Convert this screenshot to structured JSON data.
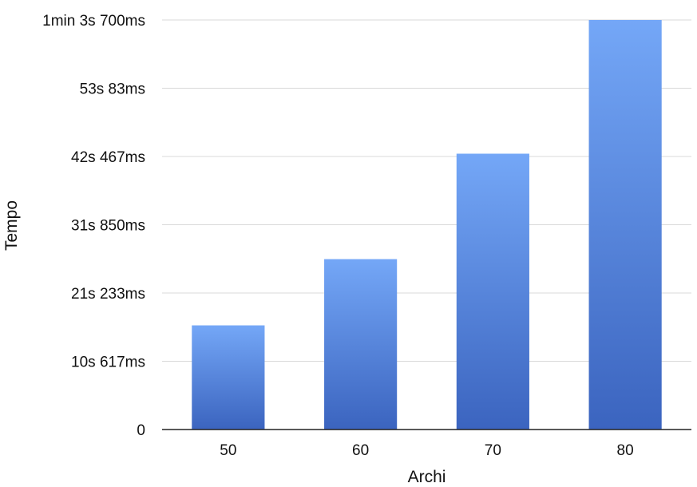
{
  "chart_data": {
    "type": "bar",
    "xlabel": "Archi",
    "ylabel": "Tempo",
    "categories": [
      "50",
      "60",
      "70",
      "80"
    ],
    "values": [
      16.2,
      26.5,
      42.9,
      63.7
    ],
    "value_unit": "s",
    "ylim": [
      0,
      63.7
    ],
    "y_ticks": [
      {
        "value": 0,
        "label": "0"
      },
      {
        "value": 10.617,
        "label": "10s 617ms"
      },
      {
        "value": 21.233,
        "label": "21s 233ms"
      },
      {
        "value": 31.85,
        "label": "31s 850ms"
      },
      {
        "value": 42.467,
        "label": "42s 467ms"
      },
      {
        "value": 53.083,
        "label": "53s 83ms"
      },
      {
        "value": 63.7,
        "label": "1min 3s 700ms"
      }
    ],
    "grid": true,
    "legend": "none",
    "bar_color_top": "#74a7f7",
    "bar_color_bottom": "#3b64bf",
    "grid_color": "#d9d9d9",
    "axis_color": "#222222"
  }
}
